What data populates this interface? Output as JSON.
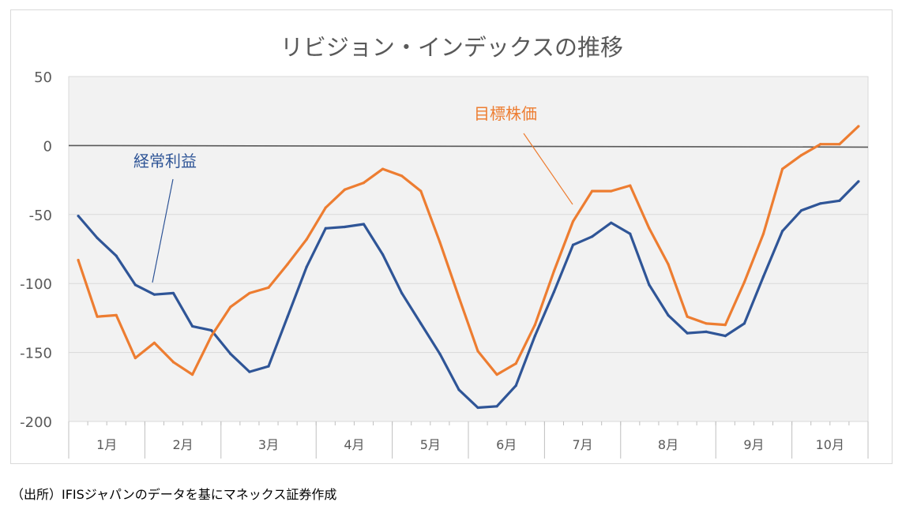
{
  "source_note": "（出所）IFISジャパンのデータを基にマネックス証券作成",
  "colors": {
    "series_keijo": "#2F5597",
    "series_mokuhyo": "#ED7D31",
    "plot_bg": "#F2F2F2",
    "grid": "#D9D9D9",
    "zero_line": "#595959",
    "text": "#595959"
  },
  "chart_data": {
    "type": "line",
    "title": "リビジョン・インデックスの推移",
    "xlabel": "",
    "ylabel": "",
    "ylim": [
      -200,
      50
    ],
    "yticks": [
      50,
      0,
      -50,
      -100,
      -150,
      -200
    ],
    "grid": true,
    "zero_line": true,
    "x_points": 42,
    "month_groups": [
      {
        "label": "1月",
        "count": 4
      },
      {
        "label": "2月",
        "count": 4
      },
      {
        "label": "3月",
        "count": 5
      },
      {
        "label": "4月",
        "count": 4
      },
      {
        "label": "5月",
        "count": 4
      },
      {
        "label": "6月",
        "count": 4
      },
      {
        "label": "7月",
        "count": 4
      },
      {
        "label": "8月",
        "count": 5
      },
      {
        "label": "9月",
        "count": 4
      },
      {
        "label": "10月",
        "count": 4
      }
    ],
    "series": [
      {
        "name": "経常利益",
        "color": "#2F5597",
        "label_anchor_index": 4,
        "values": [
          -51,
          -67,
          -80,
          -101,
          -108,
          -107,
          -131,
          -134,
          -151,
          -164,
          -160,
          -124,
          -88,
          -60,
          -59,
          -57,
          -79,
          -107,
          -129,
          -151,
          -177,
          -190,
          -189,
          -174,
          -138,
          -106,
          -72,
          -66,
          -56,
          -64,
          -101,
          -123,
          -136,
          -135,
          -138,
          -129,
          -95,
          -62,
          -47,
          -42,
          -40,
          -26
        ]
      },
      {
        "name": "目標株価",
        "color": "#ED7D31",
        "label_anchor_index": 26,
        "values": [
          -83,
          -124,
          -123,
          -154,
          -143,
          -157,
          -166,
          -138,
          -117,
          -107,
          -103,
          -86,
          -68,
          -45,
          -32,
          -27,
          -17,
          -22,
          -33,
          -70,
          -110,
          -149,
          -166,
          -158,
          -130,
          -91,
          -55,
          -33,
          -33,
          -29,
          -60,
          -86,
          -124,
          -129,
          -130,
          -99,
          -64,
          -17,
          -7,
          1,
          1,
          14
        ]
      }
    ]
  }
}
